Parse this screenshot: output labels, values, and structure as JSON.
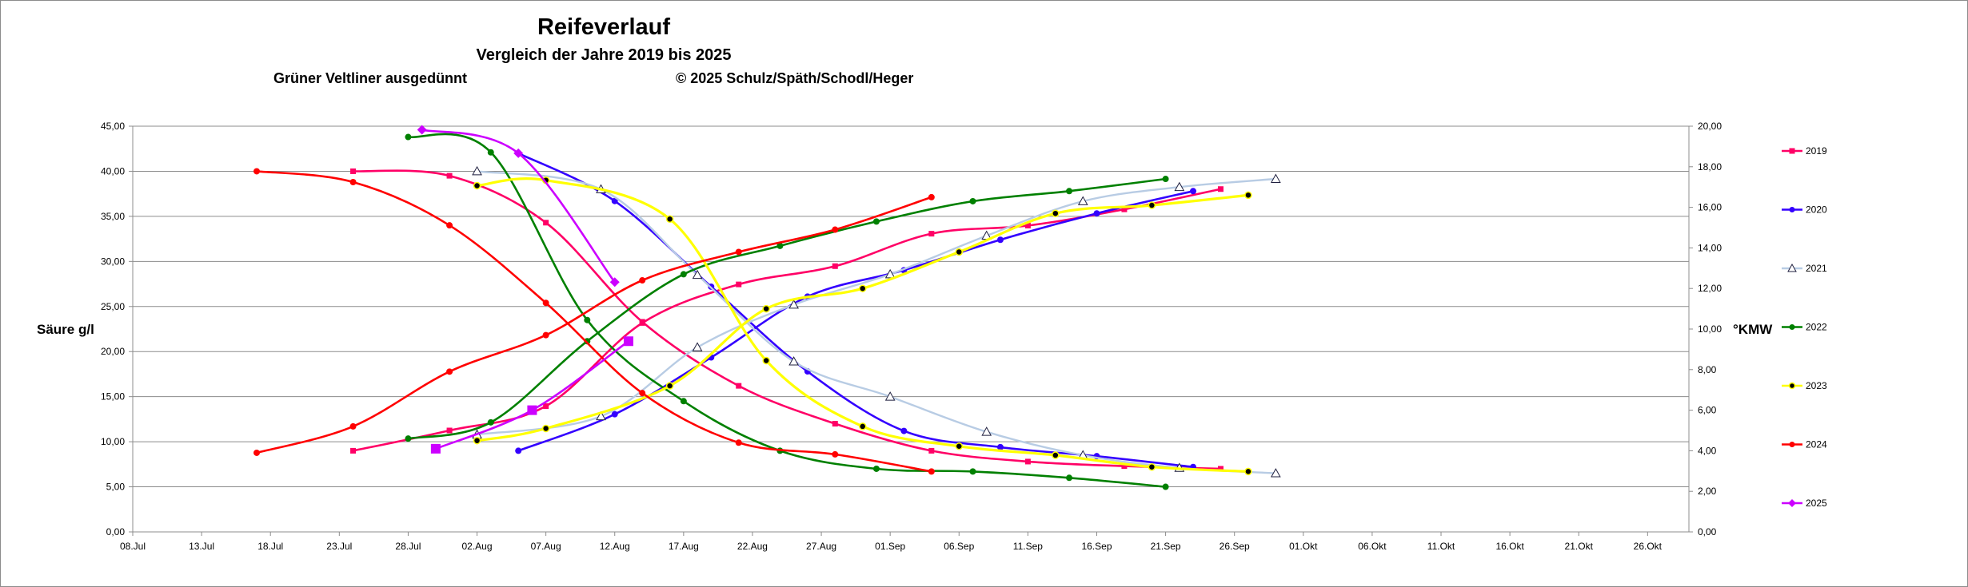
{
  "title": "Reifeverlauf",
  "subtitle": "Vergleich der Jahre 2019 bis 2025",
  "variety": "Grüner Veltliner ausgedünnt",
  "copyright": "© 2025  Schulz/Späth/Schodl/Heger",
  "chart_data": {
    "type": "line",
    "title": "Reifeverlauf",
    "subtitle": "Vergleich der Jahre 2019 bis 2025",
    "ylabel": "Säure g/l",
    "y2label": "°KMW",
    "ylim": [
      0,
      45
    ],
    "y2lim": [
      0,
      20
    ],
    "xlim": [
      "2025-07-08",
      "2025-10-29"
    ],
    "yticks": [
      "0,00",
      "5,00",
      "10,00",
      "15,00",
      "20,00",
      "25,00",
      "30,00",
      "35,00",
      "40,00",
      "45,00"
    ],
    "y2ticks": [
      "0,00",
      "2,00",
      "4,00",
      "6,00",
      "8,00",
      "10,00",
      "12,00",
      "14,00",
      "16,00",
      "18,00",
      "20,00"
    ],
    "xticks": [
      "08.Jul",
      "13.Jul",
      "18.Jul",
      "23.Jul",
      "28.Jul",
      "02.Aug",
      "07.Aug",
      "12.Aug",
      "17.Aug",
      "22.Aug",
      "27.Aug",
      "01.Sep",
      "06.Sep",
      "11.Sep",
      "16.Sep",
      "21.Sep",
      "26.Sep",
      "01.Okt",
      "06.Okt",
      "11.Okt",
      "16.Okt",
      "21.Okt",
      "26.Okt"
    ],
    "grid": true,
    "legend": "right",
    "series": [
      {
        "name": "2019",
        "color": "#ff0066",
        "marker": "square",
        "acid": [
          [
            "2025-07-24",
            40.0
          ],
          [
            "2025-07-31",
            39.5
          ],
          [
            "2025-08-07",
            34.3
          ],
          [
            "2025-08-14",
            23.3
          ],
          [
            "2025-08-21",
            16.2
          ],
          [
            "2025-08-28",
            12.0
          ],
          [
            "2025-09-04",
            9.0
          ],
          [
            "2025-09-11",
            7.8
          ],
          [
            "2025-09-18",
            7.3
          ],
          [
            "2025-09-25",
            7.0
          ]
        ],
        "kmw": [
          [
            "2025-07-24",
            4.0
          ],
          [
            "2025-07-31",
            5.0
          ],
          [
            "2025-08-07",
            6.2
          ],
          [
            "2025-08-14",
            10.3
          ],
          [
            "2025-08-21",
            12.2
          ],
          [
            "2025-08-28",
            13.1
          ],
          [
            "2025-09-04",
            14.7
          ],
          [
            "2025-09-11",
            15.1
          ],
          [
            "2025-09-18",
            15.9
          ],
          [
            "2025-09-25",
            16.9
          ]
        ]
      },
      {
        "name": "2020",
        "color": "#3300ff",
        "marker": "circle",
        "acid": [
          [
            "2025-08-05",
            42.0
          ],
          [
            "2025-08-12",
            36.7
          ],
          [
            "2025-08-19",
            27.2
          ],
          [
            "2025-08-26",
            17.8
          ],
          [
            "2025-09-02",
            11.2
          ],
          [
            "2025-09-09",
            9.4
          ],
          [
            "2025-09-16",
            8.4
          ],
          [
            "2025-09-23",
            7.2
          ]
        ],
        "kmw": [
          [
            "2025-08-05",
            4.0
          ],
          [
            "2025-08-12",
            5.8
          ],
          [
            "2025-08-19",
            8.6
          ],
          [
            "2025-08-26",
            11.6
          ],
          [
            "2025-09-02",
            12.9
          ],
          [
            "2025-09-09",
            14.4
          ],
          [
            "2025-09-16",
            15.7
          ],
          [
            "2025-09-23",
            16.8
          ]
        ]
      },
      {
        "name": "2021",
        "color": "#b8cce4",
        "marker": "triangle",
        "acid": [
          [
            "2025-08-02",
            40.0
          ],
          [
            "2025-08-11",
            38.0
          ],
          [
            "2025-08-18",
            28.5
          ],
          [
            "2025-08-25",
            18.9
          ],
          [
            "2025-09-01",
            15.0
          ],
          [
            "2025-09-08",
            11.1
          ],
          [
            "2025-09-15",
            8.5
          ],
          [
            "2025-09-22",
            7.1
          ],
          [
            "2025-09-29",
            6.5
          ]
        ],
        "kmw": [
          [
            "2025-08-02",
            4.8
          ],
          [
            "2025-08-11",
            5.7
          ],
          [
            "2025-08-18",
            9.1
          ],
          [
            "2025-08-25",
            11.2
          ],
          [
            "2025-09-01",
            12.7
          ],
          [
            "2025-09-08",
            14.6
          ],
          [
            "2025-09-15",
            16.3
          ],
          [
            "2025-09-22",
            17.0
          ],
          [
            "2025-09-29",
            17.4
          ]
        ]
      },
      {
        "name": "2022",
        "color": "#008000",
        "marker": "circle",
        "acid": [
          [
            "2025-07-28",
            43.8
          ],
          [
            "2025-08-03",
            42.1
          ],
          [
            "2025-08-10",
            23.5
          ],
          [
            "2025-08-17",
            14.5
          ],
          [
            "2025-08-24",
            9.0
          ],
          [
            "2025-08-31",
            7.0
          ],
          [
            "2025-09-07",
            6.7
          ],
          [
            "2025-09-14",
            6.0
          ],
          [
            "2025-09-21",
            5.0
          ]
        ],
        "kmw": [
          [
            "2025-07-28",
            4.6
          ],
          [
            "2025-08-03",
            5.4
          ],
          [
            "2025-08-10",
            9.4
          ],
          [
            "2025-08-17",
            12.7
          ],
          [
            "2025-08-24",
            14.1
          ],
          [
            "2025-08-31",
            15.3
          ],
          [
            "2025-09-07",
            16.3
          ],
          [
            "2025-09-14",
            16.8
          ],
          [
            "2025-09-21",
            17.4
          ]
        ]
      },
      {
        "name": "2023",
        "color": "#ffff00",
        "marker": "circle",
        "acid": [
          [
            "2025-08-02",
            38.4
          ],
          [
            "2025-08-07",
            39.0
          ],
          [
            "2025-08-16",
            34.7
          ],
          [
            "2025-08-23",
            19.0
          ],
          [
            "2025-08-30",
            11.7
          ],
          [
            "2025-09-06",
            9.5
          ],
          [
            "2025-09-13",
            8.5
          ],
          [
            "2025-09-20",
            7.2
          ],
          [
            "2025-09-27",
            6.7
          ]
        ],
        "kmw": [
          [
            "2025-08-02",
            4.5
          ],
          [
            "2025-08-07",
            5.1
          ],
          [
            "2025-08-16",
            7.2
          ],
          [
            "2025-08-23",
            11.0
          ],
          [
            "2025-08-30",
            12.0
          ],
          [
            "2025-09-06",
            13.8
          ],
          [
            "2025-09-13",
            15.7
          ],
          [
            "2025-09-20",
            16.1
          ],
          [
            "2025-09-27",
            16.6
          ]
        ]
      },
      {
        "name": "2024",
        "color": "#ff0000",
        "marker": "circle",
        "acid": [
          [
            "2025-07-17",
            40.0
          ],
          [
            "2025-07-24",
            38.8
          ],
          [
            "2025-07-31",
            34.0
          ],
          [
            "2025-08-07",
            25.4
          ],
          [
            "2025-08-14",
            15.4
          ],
          [
            "2025-08-21",
            9.9
          ],
          [
            "2025-08-28",
            8.6
          ],
          [
            "2025-09-04",
            6.7
          ]
        ],
        "kmw": [
          [
            "2025-07-17",
            3.9
          ],
          [
            "2025-07-24",
            5.2
          ],
          [
            "2025-07-31",
            7.9
          ],
          [
            "2025-08-07",
            9.7
          ],
          [
            "2025-08-14",
            12.4
          ],
          [
            "2025-08-21",
            13.8
          ],
          [
            "2025-08-28",
            14.9
          ],
          [
            "2025-09-04",
            16.5
          ]
        ]
      },
      {
        "name": "2025",
        "color": "#cc00ff",
        "marker": "diamond",
        "acid": [
          [
            "2025-07-29",
            44.6
          ],
          [
            "2025-08-05",
            42.0
          ],
          [
            "2025-08-12",
            27.7
          ]
        ],
        "kmw": [
          [
            "2025-07-30",
            4.1
          ],
          [
            "2025-08-06",
            6.0
          ],
          [
            "2025-08-13",
            9.4
          ]
        ]
      }
    ]
  }
}
